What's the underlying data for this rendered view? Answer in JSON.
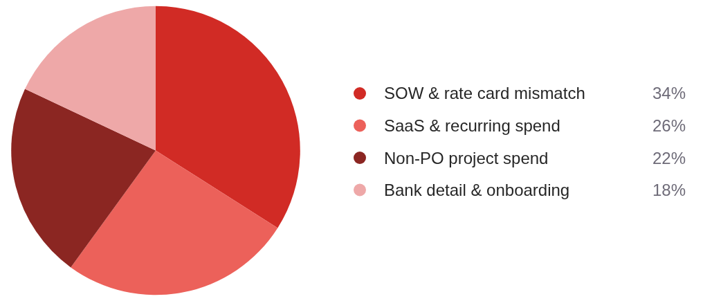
{
  "chart_data": {
    "type": "pie",
    "categories": [
      "SOW & rate card mismatch",
      "SaaS & recurring spend",
      "Non-PO project spend",
      "Bank detail & onboarding"
    ],
    "values": [
      34,
      26,
      22,
      18
    ],
    "colors": [
      "#d12b25",
      "#ec615a",
      "#8b2622",
      "#eea8a8"
    ],
    "value_labels": [
      "34%",
      "26%",
      "22%",
      "18%"
    ],
    "legend": "right"
  }
}
